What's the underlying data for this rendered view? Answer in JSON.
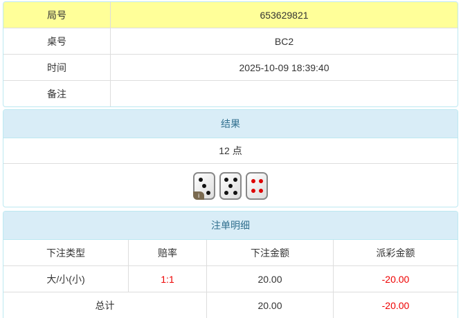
{
  "info": {
    "rows": [
      {
        "label": "局号",
        "value": "653629821"
      },
      {
        "label": "桌号",
        "value": "BC2"
      },
      {
        "label": "时间",
        "value": "2025-10-09 18:39:40"
      },
      {
        "label": "备注",
        "value": ""
      }
    ]
  },
  "result": {
    "title": "结果",
    "points": "12 点",
    "dice": [
      3,
      5,
      4
    ],
    "info_badge": "i"
  },
  "bets": {
    "title": "注单明细",
    "columns": [
      "下注类型",
      "赔率",
      "下注金额",
      "派彩金额"
    ],
    "rows": [
      {
        "type": "大/小(小)",
        "odds": "1:1",
        "amount": "20.00",
        "payout": "-20.00"
      }
    ],
    "total": {
      "label": "总计",
      "amount": "20.00",
      "payout": "-20.00"
    }
  },
  "colors": {
    "highlight": "#ffff99",
    "header": "#d9edf7",
    "negative": "#ee0000"
  }
}
